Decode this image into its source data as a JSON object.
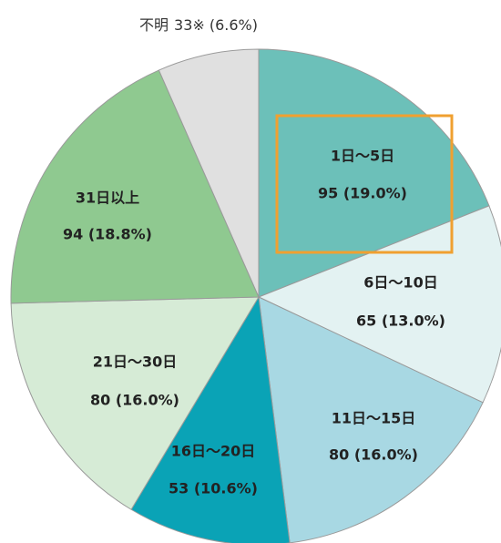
{
  "chart_data": {
    "type": "pie",
    "categories": [
      "1日～5日",
      "6日～10日",
      "11日～15日",
      "16日～20日",
      "21日～30日",
      "31日以上",
      "不明"
    ],
    "values": [
      95,
      65,
      80,
      53,
      80,
      94,
      33
    ],
    "value_labels": [
      "95 (19.0%)",
      "65 (13.0%)",
      "80 (16.0%)",
      "53 (10.6%)",
      "80 (16.0%)",
      "94 (18.8%)",
      "33※ (6.6%)"
    ],
    "colors": [
      "#6cc0b9",
      "#e3f2f2",
      "#a8d8e3",
      "#0aa3b6",
      "#d6ebd6",
      "#8fc990",
      "#e0e0e0"
    ]
  }
}
